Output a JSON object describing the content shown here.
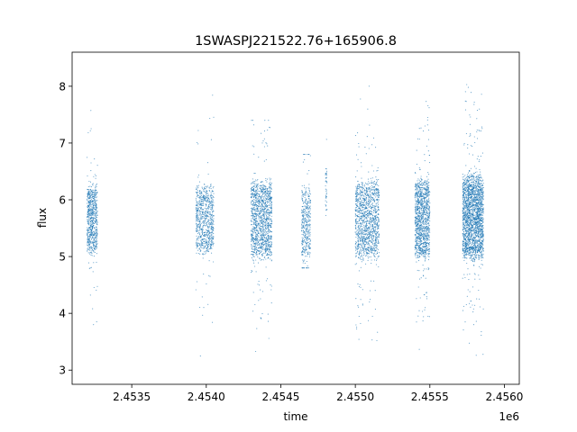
{
  "chart_data": {
    "type": "scatter",
    "title": "1SWASPJ221522.76+165906.8",
    "xlabel": "time",
    "ylabel": "flux",
    "x_offset_label": "1e6",
    "xlim": [
      2453100,
      2456100
    ],
    "ylim": [
      2.75,
      8.6
    ],
    "xticks": [
      2453500,
      2454000,
      2454500,
      2455000,
      2455500,
      2456000
    ],
    "xtick_labels": [
      "2.4535",
      "2.4540",
      "2.4545",
      "2.4550",
      "2.4555",
      "2.4560"
    ],
    "yticks": [
      3,
      4,
      5,
      6,
      7,
      8
    ],
    "ytick_labels": [
      "3",
      "4",
      "5",
      "6",
      "7",
      "8"
    ],
    "grid": false,
    "marker_color": "#1f77b4",
    "series": [
      {
        "clusters": [
          {
            "x_start": 2453200,
            "x_end": 2453270,
            "y_core": [
              5.0,
              6.3
            ],
            "y_range": [
              3.75,
              7.6
            ],
            "density": 700
          },
          {
            "x_start": 2453930,
            "x_end": 2454050,
            "y_core": [
              5.0,
              6.3
            ],
            "y_range": [
              3.0,
              8.3
            ],
            "density": 800
          },
          {
            "x_start": 2454300,
            "x_end": 2454440,
            "y_core": [
              4.9,
              6.4
            ],
            "y_range": [
              3.1,
              7.4
            ],
            "density": 1300
          },
          {
            "x_start": 2454640,
            "x_end": 2454700,
            "y_core": [
              4.9,
              6.3
            ],
            "y_range": [
              4.8,
              6.8
            ],
            "density": 400
          },
          {
            "x_start": 2454800,
            "x_end": 2454810,
            "y_core": [
              5.8,
              6.6
            ],
            "y_range": [
              5.2,
              8.2
            ],
            "density": 40
          },
          {
            "x_start": 2455000,
            "x_end": 2455160,
            "y_core": [
              4.9,
              6.4
            ],
            "y_range": [
              3.3,
              8.0
            ],
            "density": 1300
          },
          {
            "x_start": 2455400,
            "x_end": 2455500,
            "y_core": [
              4.9,
              6.4
            ],
            "y_range": [
              3.05,
              8.3
            ],
            "density": 1200
          },
          {
            "x_start": 2455720,
            "x_end": 2455860,
            "y_core": [
              4.9,
              6.5
            ],
            "y_range": [
              3.0,
              8.4
            ],
            "density": 2200
          }
        ]
      }
    ]
  }
}
